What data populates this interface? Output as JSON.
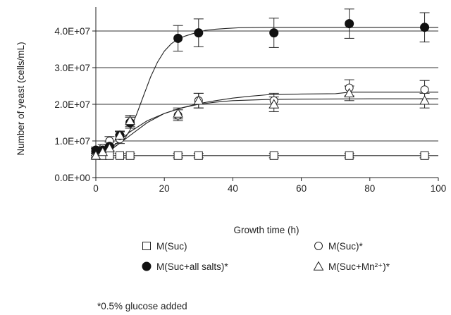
{
  "chart_data": {
    "type": "scatter",
    "xlabel": "Growth time (h)",
    "ylabel": "Number of yeast (cells/mL)",
    "xlim": [
      0,
      100
    ],
    "ylim": [
      0,
      45000000
    ],
    "x_ticks": [
      0,
      20,
      40,
      60,
      80,
      100
    ],
    "x_tick_labels": [
      "0",
      "20",
      "40",
      "60",
      "80",
      "100"
    ],
    "y_ticks": [
      0,
      10000000,
      20000000,
      30000000,
      40000000
    ],
    "y_tick_labels": [
      "0.0E+00",
      "1.0E+07",
      "2.0E+07",
      "3.0E+07",
      "4.0E+07"
    ],
    "grid": "horizontal",
    "legend_position": "bottom",
    "footnote": "*0.5% glucose added",
    "series": [
      {
        "name": "M(Suc)",
        "marker": "open-square",
        "x": [
          0,
          2,
          4,
          7,
          10,
          24,
          30,
          52,
          74,
          96
        ],
        "y": [
          6000000,
          6000000,
          6000000,
          6000000,
          6000000,
          6000000,
          6000000,
          6000000,
          6000000,
          6000000
        ],
        "error": [
          600000,
          600000,
          600000,
          600000,
          600000,
          600000,
          600000,
          600000,
          600000,
          600000
        ],
        "fit_x": [
          0,
          100
        ],
        "fit_y": [
          6000000,
          6000000
        ]
      },
      {
        "name": "M(Suc)*",
        "marker": "open-circle",
        "x": [
          0,
          2,
          4,
          7,
          10,
          24,
          30,
          52,
          74,
          96
        ],
        "y": [
          7000000,
          8000000,
          10000000,
          10500000,
          15000000,
          17000000,
          21000000,
          21000000,
          24500000,
          24000000
        ],
        "error": [
          1000000,
          1000000,
          1200000,
          1200000,
          1500000,
          1500000,
          2000000,
          2000000,
          2200000,
          2500000
        ],
        "fit_x": [
          0,
          5,
          10,
          15,
          20,
          25,
          30,
          35,
          40,
          45,
          50,
          60,
          70,
          74,
          80,
          90,
          100
        ],
        "fit_y": [
          6500000,
          8000000,
          11500000,
          15000000,
          17500000,
          19000000,
          20200000,
          21000000,
          21700000,
          22200000,
          22600000,
          22800000,
          22900000,
          23300000,
          23300000,
          23300000,
          23300000
        ]
      },
      {
        "name": "M(Suc+all salts)*",
        "marker": "filled-circle",
        "x": [
          0,
          2,
          4,
          7,
          10,
          24,
          30,
          52,
          74,
          96
        ],
        "y": [
          7500000,
          7500000,
          8500000,
          11500000,
          15000000,
          38000000,
          39500000,
          39500000,
          42000000,
          41000000
        ],
        "error": [
          800000,
          800000,
          1200000,
          1200000,
          1500000,
          3500000,
          3800000,
          4000000,
          4000000,
          4000000
        ],
        "fit_x": [
          0,
          4,
          8,
          10,
          12,
          14,
          16,
          18,
          20,
          22,
          24,
          26,
          28,
          30,
          32,
          35,
          38,
          42,
          50,
          60,
          80,
          100
        ],
        "fit_y": [
          6500000,
          7500000,
          10000000,
          13000000,
          17500000,
          22500000,
          27500000,
          31500000,
          34500000,
          36500000,
          37800000,
          38600000,
          39200000,
          39700000,
          40200000,
          40500000,
          40700000,
          40900000,
          41000000,
          41000000,
          41000000,
          41000000
        ]
      },
      {
        "name": "M(Suc+Mn²⁺)*",
        "marker": "open-triangle",
        "x": [
          0,
          2,
          4,
          7,
          10,
          24,
          30,
          52,
          74,
          96
        ],
        "y": [
          6000000,
          7000000,
          8000000,
          11500000,
          15500000,
          17500000,
          21000000,
          20000000,
          23000000,
          21000000
        ],
        "error": [
          1000000,
          1000000,
          1000000,
          1000000,
          1500000,
          1500000,
          2000000,
          2000000,
          2000000,
          2000000
        ],
        "fit_x": [
          0,
          5,
          10,
          15,
          20,
          25,
          30,
          35,
          40,
          50,
          60,
          80,
          100
        ],
        "fit_y": [
          6000000,
          8500000,
          12500000,
          15500000,
          17500000,
          19000000,
          20000000,
          20600000,
          21000000,
          21300000,
          21400000,
          21500000,
          21500000
        ]
      }
    ]
  }
}
